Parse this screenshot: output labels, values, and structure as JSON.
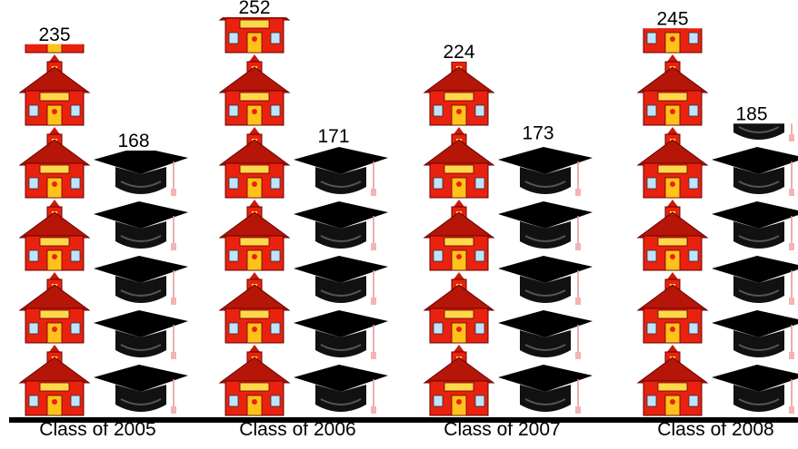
{
  "chart_data": {
    "type": "pictograph",
    "categories": [
      "Class of 2005",
      "Class of 2006",
      "Class of 2007",
      "Class of 2008"
    ],
    "series": [
      {
        "icon": "school",
        "color": "#e8220f",
        "values": [
          235,
          252,
          224,
          245
        ]
      },
      {
        "icon": "cap",
        "color": "#000000",
        "values": [
          168,
          171,
          173,
          185
        ]
      }
    ]
  }
}
